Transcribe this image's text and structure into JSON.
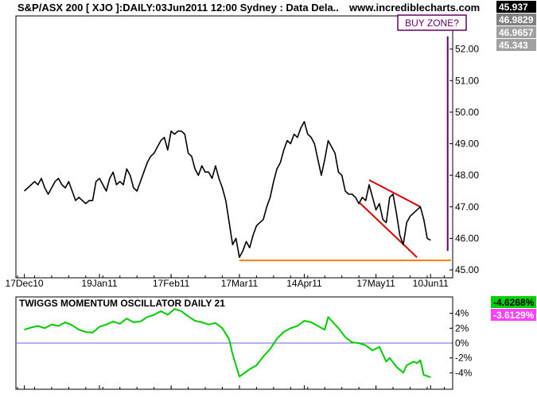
{
  "chart_data": [
    {
      "type": "line",
      "title": "S&P/ASX 200 [ XJO ]:DAILY:03Jun2011 12:00 Sydney : Data Dela..",
      "watermark": "www.incrediblecharts.com",
      "annotation": "BUY ZONE?",
      "ylim": [
        44.8,
        53.0
      ],
      "y_ticks": [
        {
          "v": 45,
          "label": "45.00"
        },
        {
          "v": 46,
          "label": "46.00"
        },
        {
          "v": 47,
          "label": "47.00"
        },
        {
          "v": 48,
          "label": "48.00"
        },
        {
          "v": 49,
          "label": "49.00"
        },
        {
          "v": 50,
          "label": "50.00"
        },
        {
          "v": 51,
          "label": "51.00"
        },
        {
          "v": 52,
          "label": "52.00"
        }
      ],
      "x_ticks": [
        {
          "x": 0,
          "label": "17Dec10"
        },
        {
          "x": 22,
          "label": "19Jan11"
        },
        {
          "x": 43,
          "label": "17Feb11"
        },
        {
          "x": 63,
          "label": "17Mar11"
        },
        {
          "x": 82,
          "label": "14Apr11"
        },
        {
          "x": 103,
          "label": "17May11"
        },
        {
          "x": 119,
          "label": "10Jun11"
        }
      ],
      "x_range": [
        -2,
        125
      ],
      "price_badges": [
        {
          "label": "45.937",
          "bg": "#000000",
          "fg": "#ffffff"
        },
        {
          "label": "46.9829",
          "bg": "#808080",
          "fg": "#ffffff"
        },
        {
          "label": "46.9657",
          "bg": "#a0a0a0",
          "fg": "#ffffff"
        },
        {
          "label": "45.343",
          "bg": "#a0a0a0",
          "fg": "#ffffff"
        }
      ],
      "series": [
        {
          "color": "#000000",
          "points": [
            [
              0,
              47.5
            ],
            [
              1,
              47.6
            ],
            [
              2,
              47.7
            ],
            [
              3,
              47.8
            ],
            [
              4,
              47.7
            ],
            [
              5,
              47.9
            ],
            [
              6,
              47.6
            ],
            [
              7,
              47.4
            ],
            [
              8,
              47.6
            ],
            [
              9,
              47.8
            ],
            [
              10,
              47.9
            ],
            [
              11,
              47.7
            ],
            [
              12,
              47.6
            ],
            [
              13,
              47.8
            ],
            [
              14,
              47.5
            ],
            [
              15,
              47.2
            ],
            [
              16,
              47.3
            ],
            [
              17,
              47.2
            ],
            [
              18,
              47.1
            ],
            [
              19,
              47.2
            ],
            [
              20,
              47.2
            ],
            [
              21,
              47.8
            ],
            [
              22,
              47.9
            ],
            [
              23,
              47.7
            ],
            [
              24,
              47.5
            ],
            [
              25,
              47.9
            ],
            [
              26,
              48.1
            ],
            [
              27,
              47.7
            ],
            [
              28,
              47.8
            ],
            [
              29,
              47.7
            ],
            [
              30,
              48.2
            ],
            [
              31,
              48.0
            ],
            [
              32,
              47.6
            ],
            [
              33,
              47.5
            ],
            [
              34,
              47.8
            ],
            [
              35,
              48.1
            ],
            [
              36,
              48.4
            ],
            [
              37,
              48.6
            ],
            [
              38,
              48.7
            ],
            [
              39,
              48.9
            ],
            [
              40,
              49.1
            ],
            [
              41,
              49.2
            ],
            [
              42,
              48.8
            ],
            [
              43,
              49.4
            ],
            [
              44,
              49.3
            ],
            [
              45,
              49.4
            ],
            [
              46,
              49.4
            ],
            [
              47,
              49.3
            ],
            [
              48,
              48.7
            ],
            [
              49,
              48.6
            ],
            [
              50,
              48.2
            ],
            [
              51,
              48.0
            ],
            [
              52,
              48.3
            ],
            [
              53,
              48.1
            ],
            [
              54,
              48.1
            ],
            [
              55,
              47.9
            ],
            [
              56,
              48.3
            ],
            [
              57,
              47.9
            ],
            [
              58,
              47.6
            ],
            [
              59,
              47.2
            ],
            [
              60,
              46.5
            ],
            [
              61,
              45.8
            ],
            [
              62,
              46.0
            ],
            [
              63,
              45.4
            ],
            [
              64,
              45.6
            ],
            [
              65,
              45.9
            ],
            [
              66,
              45.7
            ],
            [
              67,
              46.1
            ],
            [
              68,
              46.4
            ],
            [
              69,
              46.5
            ],
            [
              70,
              46.6
            ],
            [
              71,
              47.0
            ],
            [
              72,
              47.3
            ],
            [
              73,
              47.8
            ],
            [
              74,
              48.2
            ],
            [
              75,
              48.4
            ],
            [
              76,
              48.8
            ],
            [
              77,
              49.1
            ],
            [
              78,
              49.0
            ],
            [
              79,
              49.3
            ],
            [
              80,
              49.2
            ],
            [
              81,
              49.5
            ],
            [
              82,
              49.7
            ],
            [
              83,
              49.3
            ],
            [
              84,
              49.2
            ],
            [
              85,
              49.0
            ],
            [
              86,
              48.5
            ],
            [
              87,
              48.0
            ],
            [
              88,
              48.5
            ],
            [
              89,
              49.1
            ],
            [
              90,
              48.9
            ],
            [
              91,
              48.7
            ],
            [
              92,
              48.1
            ],
            [
              93,
              48.0
            ],
            [
              94,
              47.5
            ],
            [
              95,
              47.4
            ],
            [
              96,
              47.4
            ],
            [
              97,
              47.3
            ],
            [
              98,
              47.1
            ],
            [
              99,
              47.3
            ],
            [
              100,
              47.2
            ],
            [
              101,
              47.7
            ],
            [
              102,
              47.3
            ],
            [
              103,
              46.9
            ],
            [
              104,
              47.1
            ],
            [
              105,
              46.6
            ],
            [
              106,
              46.5
            ],
            [
              107,
              47.3
            ],
            [
              108,
              47.4
            ],
            [
              109,
              46.8
            ],
            [
              110,
              46.1
            ],
            [
              111,
              45.8
            ],
            [
              112,
              46.5
            ],
            [
              113,
              46.7
            ],
            [
              114,
              46.8
            ],
            [
              115,
              46.9
            ],
            [
              116,
              47.0
            ],
            [
              117,
              46.6
            ],
            [
              118,
              46.0
            ],
            [
              119,
              45.94
            ]
          ]
        }
      ],
      "trendlines": [
        {
          "color": "#dd0000",
          "from": [
            101,
            47.85
          ],
          "to": [
            116,
            47.0
          ]
        },
        {
          "color": "#dd0000",
          "from": [
            98,
            47.15
          ],
          "to": [
            115,
            45.4
          ]
        },
        {
          "color": "#ff8000",
          "from": [
            63,
            45.3
          ],
          "to": [
            125,
            45.3
          ]
        },
        {
          "color": "#660066",
          "from": [
            124,
            52.4
          ],
          "to": [
            124,
            45.6
          ]
        }
      ]
    },
    {
      "type": "line",
      "title": "TWIGGS MOMENTUM OSCILLATOR DAILY 21",
      "ylim": [
        -6,
        6
      ],
      "y_ticks": [
        {
          "v": 4,
          "label": "4%"
        },
        {
          "v": 2,
          "label": "2%"
        },
        {
          "v": 0,
          "label": "0%"
        },
        {
          "v": -2,
          "label": "-2%"
        },
        {
          "v": -4,
          "label": "-4%"
        }
      ],
      "value_badges": [
        {
          "label": "-4.6268%",
          "bg": "#00d000",
          "fg": "#000000"
        },
        {
          "label": "-3.6129%",
          "bg": "#ff40ff",
          "fg": "#ffffff"
        }
      ],
      "zero_line_color": "#6666cc",
      "series": [
        {
          "color": "#00cc00",
          "points": [
            [
              0,
              1.8
            ],
            [
              2,
              2.1
            ],
            [
              4,
              2.3
            ],
            [
              6,
              2.0
            ],
            [
              8,
              2.5
            ],
            [
              10,
              2.3
            ],
            [
              12,
              2.8
            ],
            [
              14,
              2.4
            ],
            [
              16,
              1.8
            ],
            [
              18,
              1.5
            ],
            [
              20,
              1.4
            ],
            [
              22,
              2.2
            ],
            [
              24,
              2.5
            ],
            [
              26,
              2.9
            ],
            [
              28,
              2.6
            ],
            [
              30,
              3.3
            ],
            [
              32,
              2.8
            ],
            [
              34,
              2.9
            ],
            [
              36,
              3.5
            ],
            [
              38,
              3.8
            ],
            [
              40,
              4.3
            ],
            [
              42,
              3.8
            ],
            [
              44,
              4.6
            ],
            [
              46,
              4.3
            ],
            [
              48,
              3.6
            ],
            [
              50,
              3.0
            ],
            [
              52,
              2.8
            ],
            [
              54,
              2.5
            ],
            [
              56,
              2.7
            ],
            [
              58,
              2.0
            ],
            [
              60,
              0.5
            ],
            [
              61,
              -1.5
            ],
            [
              62,
              -3.0
            ],
            [
              63,
              -4.5
            ],
            [
              64,
              -4.2
            ],
            [
              66,
              -3.5
            ],
            [
              68,
              -3.0
            ],
            [
              70,
              -1.8
            ],
            [
              72,
              -0.8
            ],
            [
              74,
              0.6
            ],
            [
              76,
              1.5
            ],
            [
              78,
              2.0
            ],
            [
              80,
              2.3
            ],
            [
              82,
              3.0
            ],
            [
              84,
              2.8
            ],
            [
              86,
              2.3
            ],
            [
              88,
              1.8
            ],
            [
              89,
              3.5
            ],
            [
              90,
              3.0
            ],
            [
              92,
              2.0
            ],
            [
              94,
              0.8
            ],
            [
              96,
              0.1
            ],
            [
              98,
              0.0
            ],
            [
              100,
              -0.3
            ],
            [
              102,
              -1.0
            ],
            [
              104,
              -0.5
            ],
            [
              106,
              -2.5
            ],
            [
              107,
              -2.0
            ],
            [
              109,
              -3.2
            ],
            [
              111,
              -4.0
            ],
            [
              112,
              -3.0
            ],
            [
              114,
              -2.5
            ],
            [
              115,
              -2.7
            ],
            [
              116,
              -2.3
            ],
            [
              117,
              -4.3
            ],
            [
              119,
              -4.6
            ]
          ]
        }
      ]
    }
  ]
}
